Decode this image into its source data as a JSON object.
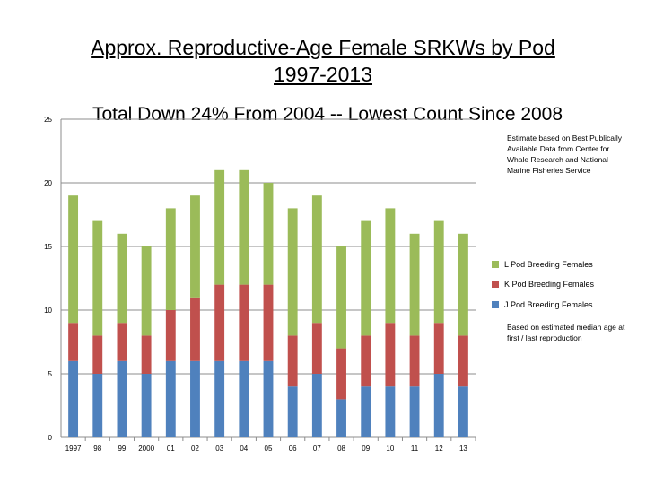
{
  "chart_data": {
    "type": "bar",
    "stacked": true,
    "title_line1": "Approx. Reproductive-Age Female SRKWs by Pod",
    "title_line2": "1997-2013",
    "subtitle": "Total Down 24% From 2004 -- Lowest Count Since 2008",
    "categories": [
      "1997",
      "98",
      "99",
      "2000",
      "01",
      "02",
      "03",
      "04",
      "05",
      "06",
      "07",
      "08",
      "09",
      "10",
      "11",
      "12",
      "13"
    ],
    "series": [
      {
        "name": "J Pod Breeding Females",
        "color": "#4f81bd",
        "values": [
          6,
          5,
          6,
          5,
          6,
          6,
          6,
          6,
          6,
          4,
          5,
          3,
          4,
          4,
          4,
          5,
          4
        ]
      },
      {
        "name": "K Pod Breeding Females",
        "color": "#c0504d",
        "values": [
          3,
          3,
          3,
          3,
          4,
          5,
          6,
          6,
          6,
          4,
          4,
          4,
          4,
          5,
          4,
          4,
          4
        ]
      },
      {
        "name": "L Pod Breeding Females",
        "color": "#9bbb59",
        "values": [
          10,
          9,
          7,
          7,
          8,
          8,
          9,
          9,
          8,
          10,
          10,
          8,
          9,
          9,
          8,
          8,
          8
        ]
      }
    ],
    "ylim": [
      0,
      25
    ],
    "yticks": [
      0,
      5,
      10,
      15,
      20,
      25
    ],
    "grid": true,
    "legend_position": "right"
  },
  "notes": {
    "source": "Estimate based on Best Publically Available Data from Center for Whale Research and National Marine Fisheries Service",
    "method": "Based on estimated median age at first / last reproduction"
  }
}
